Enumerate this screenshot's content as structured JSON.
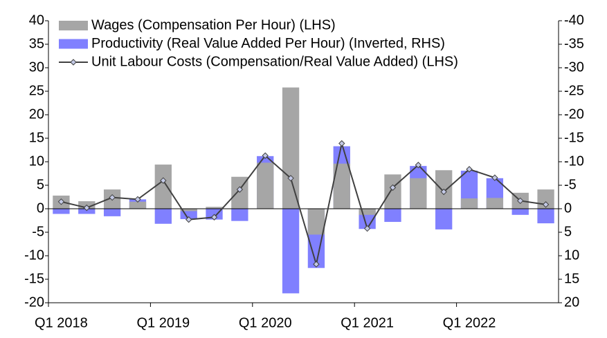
{
  "chart_data": {
    "type": "bar",
    "categories": [
      "Q1 2018",
      null,
      null,
      null,
      "Q1 2019",
      null,
      null,
      null,
      "Q1 2020",
      null,
      null,
      null,
      "Q1 2021",
      null,
      null,
      null,
      "Q1 2022",
      null,
      null,
      null
    ],
    "series": [
      {
        "name": "Wages (Compensation Per Hour) (LHS)",
        "type": "bar",
        "color": "#a6a6a6",
        "values": [
          2.8,
          1.6,
          4.1,
          1.5,
          9.4,
          -0.5,
          0.4,
          6.8,
          9.8,
          25.8,
          -5.5,
          9.6,
          -1.3,
          7.3,
          6.5,
          8.2,
          2.2,
          2.3,
          3.4,
          4.1
        ]
      },
      {
        "name": "Productivity (Real Value Added Per Hour) (Inverted, RHS)",
        "type": "bar",
        "axis": "y2",
        "color": "#8080ff",
        "values": [
          1.1,
          1.1,
          1.6,
          -2.0,
          3.2,
          2.2,
          2.3,
          2.6,
          -11.2,
          18,
          12.6,
          -13.3,
          4.3,
          2.8,
          -9.1,
          4.4,
          -8.1,
          -6.5,
          1.3,
          3.1
        ]
      },
      {
        "name": "Unit Labour Costs (Compensation/Real Value Added) (LHS)",
        "type": "line",
        "color": "#404040",
        "marker_color": "#c3c9e6",
        "values": [
          1.5,
          0.2,
          2.4,
          2.0,
          6.0,
          -2.3,
          -1.8,
          4.1,
          11.3,
          6.5,
          -11.8,
          13.9,
          -4.2,
          4.5,
          9.3,
          3.6,
          8.4,
          6.6,
          1.7,
          0.9
        ]
      }
    ],
    "ylim": [
      -20,
      40
    ],
    "yticks": [
      -20,
      -15,
      -10,
      -5,
      0,
      5,
      10,
      15,
      20,
      25,
      30,
      35,
      40
    ],
    "y2lim": [
      20,
      -40
    ],
    "y2ticks": [
      20,
      15,
      10,
      5,
      0,
      -5,
      -10,
      -15,
      -20,
      -25,
      -30,
      -35,
      -40
    ],
    "legend": "top-left"
  }
}
